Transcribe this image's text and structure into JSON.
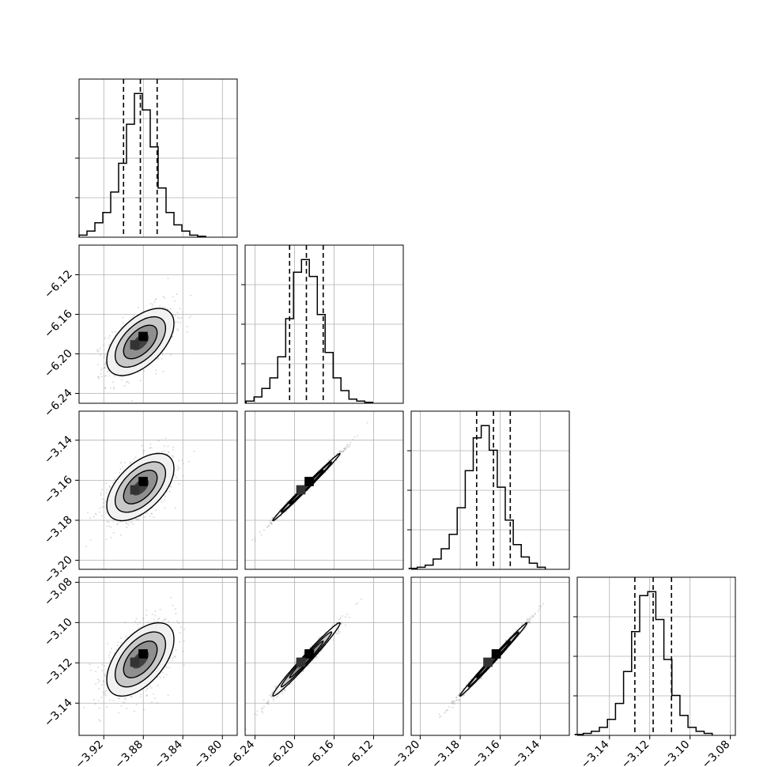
{
  "chart_data": {
    "type": "corner",
    "grid": true,
    "parameters": [
      {
        "range": [
          -3.945,
          -3.785
        ],
        "ticks": [
          -3.92,
          -3.88,
          -3.84,
          -3.8
        ],
        "tick_labels": [
          "−3.92",
          "−3.88",
          "−3.84",
          "−3.80"
        ],
        "quantiles": [
          -3.9,
          -3.883,
          -3.866
        ],
        "hist_x": [
          -3.941,
          -3.933,
          -3.925,
          -3.917,
          -3.909,
          -3.901,
          -3.893,
          -3.885,
          -3.877,
          -3.869,
          -3.861,
          -3.853,
          -3.845,
          -3.837,
          -3.829,
          -3.821
        ],
        "hist_y": [
          1,
          3,
          7,
          12,
          22,
          36,
          55,
          70,
          62,
          44,
          24,
          12,
          6,
          3,
          1,
          0.5
        ]
      },
      {
        "range": [
          -6.25,
          -6.09
        ],
        "ticks": [
          -6.24,
          -6.2,
          -6.16,
          -6.12
        ],
        "tick_labels": [
          "−6.24",
          "−6.20",
          "−6.16",
          "−6.12"
        ],
        "quantiles": [
          -6.205,
          -6.188,
          -6.171
        ],
        "hist_x": [
          -6.245,
          -6.237,
          -6.229,
          -6.221,
          -6.213,
          -6.205,
          -6.197,
          -6.189,
          -6.181,
          -6.173,
          -6.165,
          -6.157,
          -6.149,
          -6.141,
          -6.133,
          -6.125
        ],
        "hist_y": [
          1,
          3,
          7,
          12,
          22,
          40,
          62,
          68,
          60,
          42,
          24,
          12,
          6,
          2,
          1,
          0.5
        ]
      },
      {
        "range": [
          -3.2045,
          -3.1255
        ],
        "ticks": [
          -3.2,
          -3.18,
          -3.16,
          -3.14
        ],
        "tick_labels": [
          "−3.20",
          "−3.18",
          "−3.16",
          "−3.14"
        ],
        "quantiles": [
          -3.1718,
          -3.1634,
          -3.155
        ],
        "hist_x": [
          -3.2035,
          -3.1995,
          -3.1955,
          -3.1915,
          -3.1875,
          -3.1835,
          -3.1795,
          -3.1755,
          -3.1715,
          -3.1675,
          -3.1635,
          -3.1595,
          -3.1555,
          -3.1515,
          -3.1475,
          -3.1435,
          -3.1395
        ],
        "hist_y": [
          0.5,
          1,
          2,
          5,
          10,
          17,
          30,
          48,
          64,
          70,
          58,
          40,
          24,
          12,
          6,
          3,
          1
        ]
      },
      {
        "range": [
          -3.156,
          -3.0775
        ],
        "ticks": [
          -3.14,
          -3.12,
          -3.1,
          -3.08
        ],
        "tick_labels": [
          "−3.14",
          "−3.12",
          "−3.10",
          "−3.08"
        ],
        "quantiles": [
          -3.1274,
          -3.1183,
          -3.1092
        ],
        "hist_x": [
          -3.155,
          -3.151,
          -3.147,
          -3.143,
          -3.139,
          -3.135,
          -3.131,
          -3.127,
          -3.123,
          -3.119,
          -3.115,
          -3.111,
          -3.107,
          -3.103,
          -3.099,
          -3.095,
          -3.091
        ],
        "hist_y": [
          0.5,
          1,
          2,
          4,
          8,
          16,
          32,
          52,
          70,
          72,
          58,
          38,
          20,
          10,
          4,
          2,
          1
        ]
      }
    ],
    "y_tick_labels": {
      "1": [
        "−6.12",
        "−6.16",
        "−6.20",
        "−6.24"
      ],
      "2": [
        "−3.14",
        "−3.16",
        "−3.18",
        "−3.20"
      ],
      "3": [
        "−3.08",
        "−3.10",
        "−3.12",
        "−3.14"
      ]
    },
    "correlations": {
      "1-0": 0.55,
      "2-0": 0.55,
      "3-0": 0.55,
      "2-1": 0.995,
      "3-1": 0.985,
      "3-2": 0.995
    },
    "contour_levels": 4,
    "colors": {
      "lines": "#000000",
      "points": "#7f7f7f",
      "grid": "#b0b0b0"
    }
  }
}
